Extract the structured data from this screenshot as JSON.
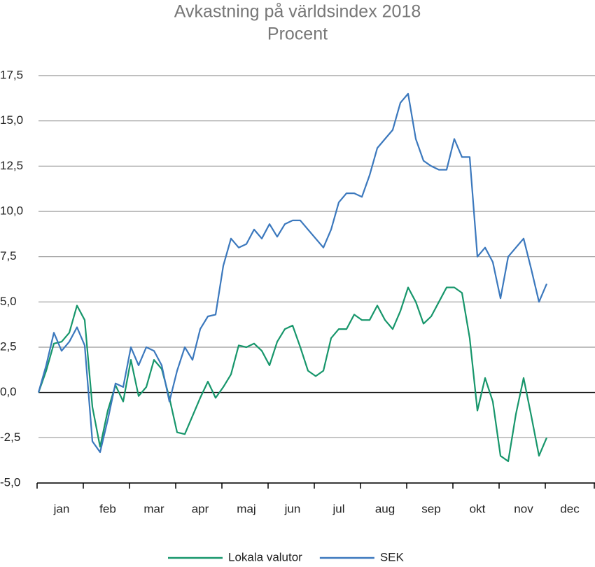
{
  "chart_data": {
    "type": "line",
    "title": "Avkastning på världsindex 2018",
    "subtitle": "Procent",
    "categories": [
      "jan",
      null,
      null,
      null,
      null,
      null,
      "feb",
      null,
      null,
      null,
      null,
      null,
      "mar",
      null,
      null,
      null,
      null,
      null,
      "apr",
      null,
      null,
      null,
      null,
      null,
      "maj",
      null,
      null,
      null,
      null,
      null,
      "jun",
      null,
      null,
      null,
      null,
      null,
      "jul",
      null,
      null,
      null,
      null,
      null,
      "aug",
      null,
      null,
      null,
      null,
      null,
      "sep",
      null,
      null,
      null,
      null,
      null,
      "okt",
      null,
      null,
      null,
      null,
      null,
      "nov",
      null,
      null,
      null,
      null,
      null,
      "dec",
      null,
      null,
      null,
      null,
      null
    ],
    "series": [
      {
        "name": "Lokala valutor",
        "color": "#17966b",
        "values": [
          0,
          1.2,
          2.7,
          2.8,
          3.3,
          4.8,
          4,
          -0.8,
          -3,
          -1,
          0.4,
          -0.5,
          1.8,
          -0.2,
          0.3,
          1.8,
          1.3,
          -0.3,
          -2.2,
          -2.3,
          -1.3,
          -0.3,
          0.6,
          -0.3,
          0.3,
          1,
          2.6,
          2.5,
          2.7,
          2.3,
          1.5,
          2.8,
          3.5,
          3.7,
          2.5,
          1.2,
          0.9,
          1.2,
          3,
          3.5,
          3.5,
          4.3,
          4,
          4,
          4.8,
          4,
          3.5,
          4.5,
          5.8,
          5,
          3.8,
          4.2,
          5,
          5.8,
          5.8,
          5.5,
          3,
          -1,
          0.8,
          -0.5,
          -3.5,
          -3.8,
          -1.2,
          0.8,
          -1.3,
          -3.5,
          -2.5,
          null,
          null,
          null,
          null,
          null
        ]
      },
      {
        "name": "SEK",
        "color": "#3b78bd",
        "values": [
          0,
          1.5,
          3.3,
          2.3,
          2.8,
          3.6,
          2.6,
          -2.7,
          -3.3,
          -1.5,
          0.5,
          0.3,
          2.5,
          1.5,
          2.5,
          2.3,
          1.5,
          -0.5,
          1.2,
          2.5,
          1.8,
          3.5,
          4.2,
          4.3,
          7,
          8.5,
          8,
          8.2,
          9,
          8.5,
          9.3,
          8.6,
          9.3,
          9.5,
          9.5,
          9,
          8.5,
          8,
          9,
          10.5,
          11,
          11,
          10.8,
          12,
          13.5,
          14,
          14.5,
          16,
          16.5,
          14,
          12.8,
          12.5,
          12.3,
          12.3,
          14,
          13,
          13,
          7.5,
          8,
          7.2,
          5.2,
          7.5,
          8,
          8.5,
          6.8,
          5,
          6,
          null,
          null,
          null,
          null,
          null
        ]
      }
    ],
    "ylim": [
      -5,
      17.5
    ],
    "yticks": [
      {
        "value": -5,
        "label": "-5,0"
      },
      {
        "value": -2.5,
        "label": "-2,5"
      },
      {
        "value": 0,
        "label": "0,0"
      },
      {
        "value": 2.5,
        "label": "2,5"
      },
      {
        "value": 5,
        "label": "5,0"
      },
      {
        "value": 7.5,
        "label": "7,5"
      },
      {
        "value": 10,
        "label": "10,0"
      },
      {
        "value": 12.5,
        "label": "12,5"
      },
      {
        "value": 15,
        "label": "15,0"
      },
      {
        "value": 17.5,
        "label": "17,5"
      }
    ],
    "grid": true,
    "legend": "bottom"
  }
}
